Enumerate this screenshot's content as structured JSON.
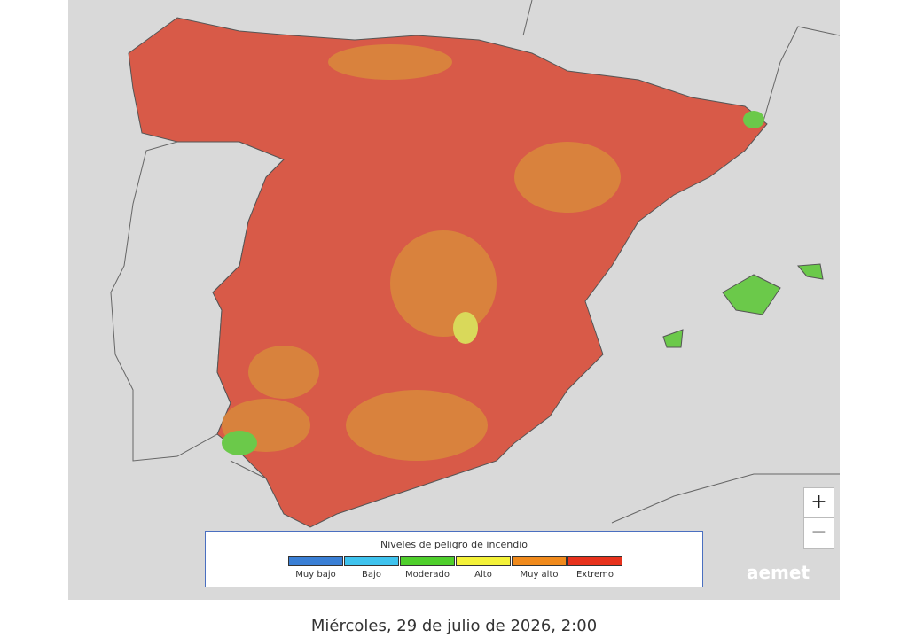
{
  "legend": {
    "title": "Niveles de peligro de incendio",
    "levels": [
      {
        "name": "Muy bajo",
        "color": "#3a7fd5"
      },
      {
        "name": "Bajo",
        "color": "#3fc3ee"
      },
      {
        "name": "Moderado",
        "color": "#4fcf2c"
      },
      {
        "name": "Alto",
        "color": "#f4f23a"
      },
      {
        "name": "Muy alto",
        "color": "#f08a1c"
      },
      {
        "name": "Extremo",
        "color": "#e7321d"
      }
    ]
  },
  "zoom": {
    "in": "+",
    "out": "−"
  },
  "logo": "aemet",
  "caption": "Miércoles, 29 de julio de 2026, 2:00"
}
